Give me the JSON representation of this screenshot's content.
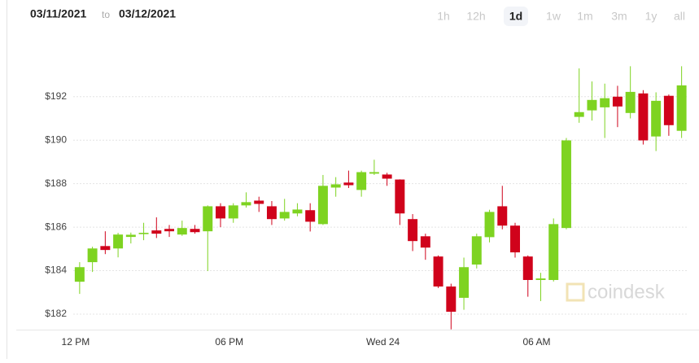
{
  "header": {
    "from": "03/11/2021",
    "to_word": "to",
    "to": "03/12/2021",
    "ranges": [
      "1h",
      "12h",
      "1d",
      "1w",
      "1m",
      "3m",
      "1y",
      "all"
    ],
    "selected_range": 2
  },
  "chart_data": {
    "type": "candlestick",
    "categories": [
      "12 PM",
      null,
      null,
      null,
      null,
      null,
      null,
      null,
      null,
      null,
      null,
      null,
      "06 PM",
      null,
      null,
      null,
      null,
      null,
      null,
      null,
      null,
      null,
      null,
      null,
      "Wed 24",
      null,
      null,
      null,
      null,
      null,
      null,
      null,
      null,
      null,
      null,
      null,
      "06 AM",
      null,
      null,
      null,
      null,
      null,
      null,
      null,
      null,
      null,
      null,
      null
    ],
    "open": [
      183.49,
      184.39,
      185.13,
      185.02,
      185.55,
      185.68,
      185.85,
      185.92,
      185.66,
      185.92,
      185.81,
      186.96,
      186.4,
      187.0,
      187.22,
      186.96,
      186.4,
      186.63,
      186.78,
      186.14,
      187.82,
      188.05,
      187.71,
      188.46,
      188.42,
      188.19,
      186.37,
      185.58,
      184.65,
      183.27,
      182.75,
      184.28,
      185.54,
      186.96,
      186.07,
      184.65,
      183.57,
      183.57,
      185.96,
      191.07,
      191.37,
      191.51,
      192.0,
      191.25,
      192.15,
      190.17,
      192.04,
      190.43
    ],
    "high": [
      184.39,
      185.1,
      185.81,
      185.74,
      185.75,
      186.2,
      186.45,
      186.1,
      186.3,
      186.1,
      187.0,
      187.1,
      187.1,
      187.6,
      187.4,
      187.2,
      187.3,
      187.1,
      187.1,
      188.4,
      188.3,
      188.6,
      188.6,
      189.1,
      188.5,
      188.2,
      186.6,
      185.7,
      184.7,
      183.4,
      184.6,
      185.7,
      186.8,
      187.9,
      186.2,
      184.7,
      183.9,
      186.4,
      190.1,
      193.3,
      192.7,
      192.6,
      192.5,
      193.4,
      192.3,
      192.2,
      192.1,
      193.4
    ],
    "low": [
      182.93,
      183.94,
      184.76,
      184.61,
      185.25,
      185.4,
      185.5,
      185.55,
      185.6,
      185.7,
      183.98,
      186.0,
      186.2,
      186.9,
      186.7,
      186.1,
      186.3,
      186.5,
      185.8,
      186.1,
      187.4,
      187.8,
      187.4,
      188.4,
      187.9,
      186.1,
      184.9,
      184.5,
      183.2,
      181.3,
      182.2,
      184.1,
      185.3,
      185.9,
      184.6,
      182.8,
      182.6,
      183.5,
      185.9,
      190.8,
      190.9,
      190.1,
      190.6,
      191.0,
      189.8,
      189.5,
      190.2,
      190.1
    ],
    "close": [
      184.16,
      185.02,
      184.95,
      185.66,
      185.65,
      185.74,
      185.7,
      185.81,
      185.96,
      185.77,
      186.96,
      186.4,
      187.0,
      187.15,
      187.07,
      186.37,
      186.7,
      186.81,
      186.25,
      187.9,
      187.97,
      187.93,
      188.53,
      188.53,
      188.23,
      186.63,
      185.36,
      185.06,
      183.27,
      182.11,
      184.16,
      185.58,
      186.7,
      186.07,
      184.84,
      183.57,
      183.64,
      186.14,
      189.99,
      191.29,
      191.85,
      191.93,
      191.55,
      192.22,
      189.99,
      191.81,
      190.69,
      192.52
    ],
    "up_color": "#7ed321",
    "down_color": "#d0021b",
    "ylim": [
      181.1,
      194.2
    ],
    "yticks": [
      {
        "value": 182,
        "label": "$182"
      },
      {
        "value": 184,
        "label": "$184"
      },
      {
        "value": 186,
        "label": "$186"
      },
      {
        "value": 188,
        "label": "$188"
      },
      {
        "value": 190,
        "label": "$190"
      },
      {
        "value": 192,
        "label": "$192"
      }
    ],
    "grid": true,
    "watermark": "coindesk"
  }
}
